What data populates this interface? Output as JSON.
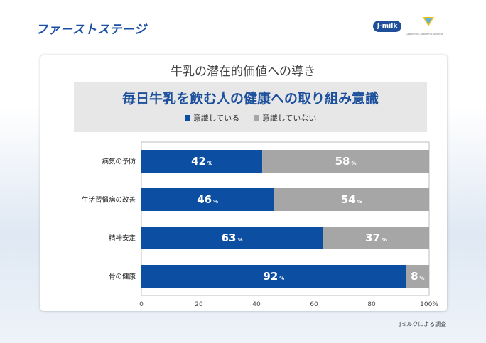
{
  "header": {
    "title": "ファーストステージ"
  },
  "logos": {
    "jmilk": "J-milk",
    "jmaa": "Japan Milk Academic Alliance"
  },
  "subtitle": "牛乳の潜在的価値への導き",
  "footer": {
    "source": "Jミルクによる調査"
  },
  "colors": {
    "aware": "#0b4ea2",
    "not_aware": "#a6a6a6",
    "title": "#1c4f9c"
  },
  "chart_data": {
    "type": "bar",
    "orientation": "horizontal",
    "stacked": true,
    "title": "毎日牛乳を飲む人の健康への取り組み意識",
    "categories": [
      "病気の予防",
      "生活習慣病の改善",
      "精神安定",
      "骨の健康"
    ],
    "series": [
      {
        "name": "意識している",
        "values": [
          42,
          46,
          63,
          92
        ],
        "color": "#0b4ea2"
      },
      {
        "name": "意識していない",
        "values": [
          58,
          54,
          37,
          8
        ],
        "color": "#a6a6a6"
      }
    ],
    "value_suffix": "%",
    "xlim": [
      0,
      100
    ],
    "xticks": [
      "0",
      "20",
      "40",
      "60",
      "80",
      "100%"
    ],
    "legend_position": "top"
  }
}
